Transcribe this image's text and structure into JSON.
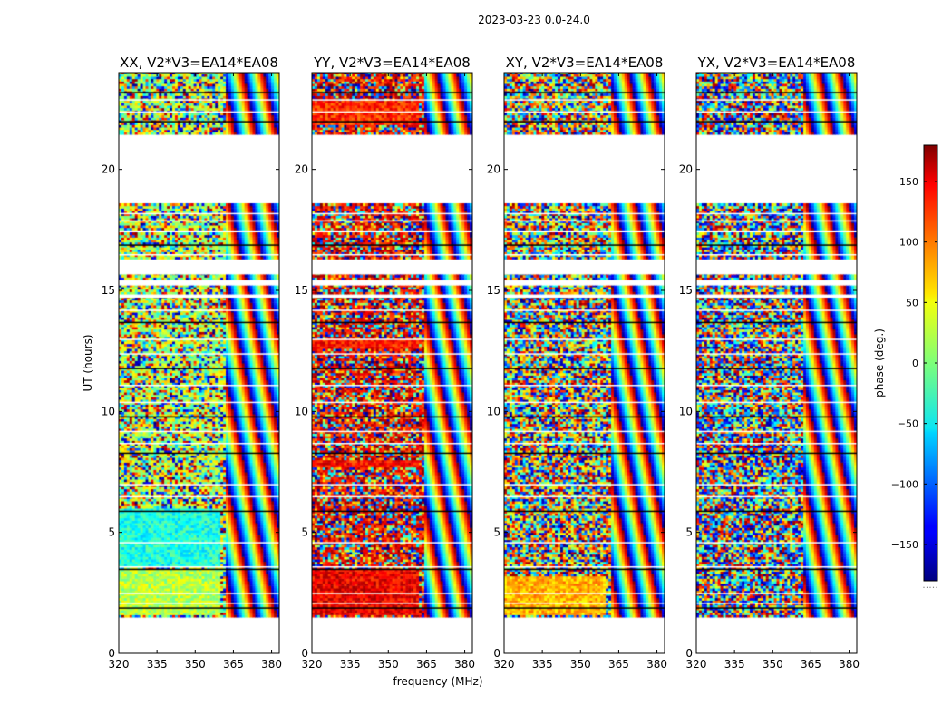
{
  "figure": {
    "title": "2023-03-23 0.0-24.0"
  },
  "chart_data": {
    "type": "heatmap",
    "title": "2023-03-23 0.0-24.0",
    "xlabel": "frequency (MHz)",
    "ylabel": "UT (hours)",
    "xlim": [
      320,
      383
    ],
    "ylim": [
      0,
      24
    ],
    "xticks": [
      320,
      335,
      350,
      365,
      380
    ],
    "yticks": [
      0,
      5,
      10,
      15,
      20
    ],
    "panels": [
      {
        "title": "XX, V2*V3=EA14*EA08",
        "quality": 0.4,
        "base_phase": 20,
        "coherent_rows": [
          [
            1.6,
            3.5,
            20
          ],
          [
            3.6,
            5.9,
            -35
          ]
        ],
        "coherent_freq_max": 360
      },
      {
        "title": "YY, V2*V3=EA14*EA08",
        "quality": 0.45,
        "base_phase": 140,
        "coherent_rows": [
          [
            1.6,
            3.5,
            140
          ],
          [
            7.6,
            7.9,
            130
          ],
          [
            12.5,
            12.9,
            130
          ],
          [
            21.8,
            22.8,
            120
          ]
        ],
        "coherent_freq_max": 362
      },
      {
        "title": "XY, V2*V3=EA14*EA08",
        "quality": 0.1,
        "base_phase": 60,
        "coherent_rows": [
          [
            1.6,
            3.2,
            70
          ]
        ],
        "coherent_freq_max": 360
      },
      {
        "title": "YX, V2*V3=EA14*EA08",
        "quality": 0.05,
        "base_phase": -120,
        "coherent_rows": [],
        "coherent_freq_max": 360
      }
    ],
    "data_time_ranges": [
      [
        1.5,
        14.7
      ],
      [
        14.85,
        15.2
      ],
      [
        15.45,
        15.65
      ],
      [
        16.3,
        17.4
      ],
      [
        17.5,
        18.6
      ],
      [
        21.45,
        24.0
      ]
    ],
    "flagged_lines": [
      1.9,
      2.1,
      2.5,
      3.5,
      3.6,
      4.6,
      5.9,
      6.5,
      7.0,
      8.3,
      8.7,
      9.2,
      9.8,
      10.4,
      11.1,
      11.8,
      12.4,
      13.0,
      13.7,
      14.2,
      16.5,
      16.9,
      17.9,
      18.2,
      22.0,
      22.4,
      22.9,
      23.2
    ],
    "colorbar": {
      "label": "phase (deg.)",
      "range": [
        -180,
        180
      ],
      "ticks": [
        150,
        100,
        50,
        0,
        -50,
        -100,
        -150
      ],
      "colormap": "jet",
      "footnote": "....."
    }
  }
}
